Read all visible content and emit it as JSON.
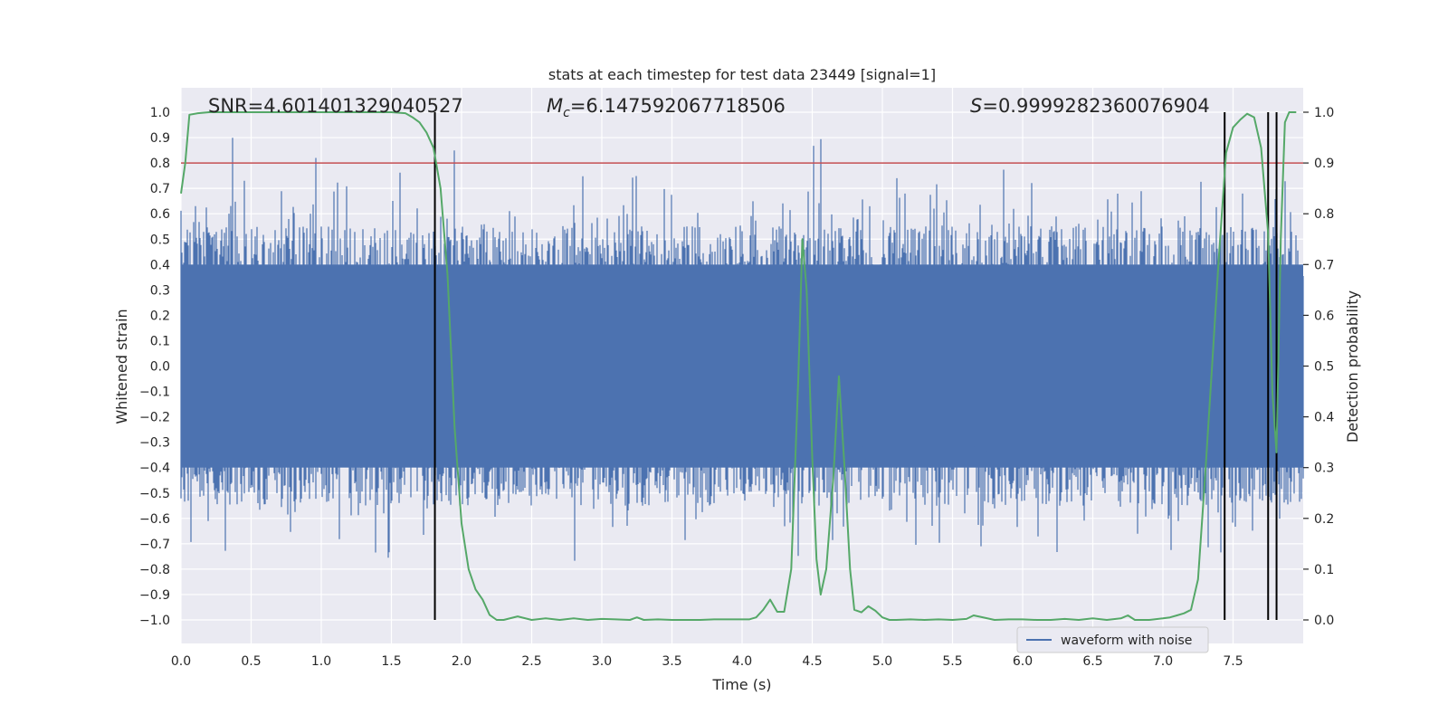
{
  "chart_data": {
    "type": "line",
    "title": "stats at each timestep for test data 23449 [signal=1]",
    "xlabel": "Time (s)",
    "ylabel": "Whitened strain",
    "y2label": "Detection probability",
    "xlim": [
      0.0,
      8.0
    ],
    "ylim": [
      -1.0,
      1.0
    ],
    "y2lim": [
      0.0,
      1.0
    ],
    "x_ticks": [
      0.0,
      0.5,
      1.0,
      1.5,
      2.0,
      2.5,
      3.0,
      3.5,
      4.0,
      4.5,
      5.0,
      5.5,
      6.0,
      6.5,
      7.0,
      7.5
    ],
    "x_tick_labels": [
      "0.0",
      "0.5",
      "1.0",
      "1.5",
      "2.0",
      "2.5",
      "3.0",
      "3.5",
      "4.0",
      "4.5",
      "5.0",
      "5.5",
      "6.0",
      "6.5",
      "7.0",
      "7.5"
    ],
    "y_ticks": [
      -1.0,
      -0.9,
      -0.8,
      -0.7,
      -0.6,
      -0.5,
      -0.4,
      -0.3,
      -0.2,
      -0.1,
      0.0,
      0.1,
      0.2,
      0.3,
      0.4,
      0.5,
      0.6,
      0.7,
      0.8,
      0.9,
      1.0
    ],
    "y_tick_labels": [
      "−1.0",
      "−0.9",
      "−0.8",
      "−0.7",
      "−0.6",
      "−0.5",
      "−0.4",
      "−0.3",
      "−0.2",
      "−0.1",
      "0.0",
      "0.1",
      "0.2",
      "0.3",
      "0.4",
      "0.5",
      "0.6",
      "0.7",
      "0.8",
      "0.9",
      "1.0"
    ],
    "y2_ticks": [
      0.0,
      0.1,
      0.2,
      0.3,
      0.4,
      0.5,
      0.6,
      0.7,
      0.8,
      0.9,
      1.0
    ],
    "y2_tick_labels": [
      "0.0",
      "0.1",
      "0.2",
      "0.3",
      "0.4",
      "0.5",
      "0.6",
      "0.7",
      "0.8",
      "0.9",
      "1.0"
    ],
    "annotations": {
      "snr": "SNR=4.601401329040527",
      "mc_symbol": "M",
      "mc_sub": "c",
      "mc_value": "=6.147592067718506",
      "s_symbol": "S",
      "s_value": "=0.9999282360076904"
    },
    "threshold": {
      "value": 0.8,
      "axis": "left",
      "color": "#c44e52"
    },
    "vertical_lines": [
      1.81,
      7.44,
      7.75,
      7.81
    ],
    "legend": {
      "label": "waveform with noise",
      "location": "bottom-right"
    },
    "colors": {
      "waveform": "#4c72b0",
      "probability": "#55a868",
      "threshold": "#c44e52",
      "vlines": "#000000",
      "plot_bg": "#eaeaf2",
      "grid": "#ffffff"
    },
    "waveform": {
      "name": "waveform with noise",
      "core_amplitude": 0.4,
      "noise_scale": 0.5,
      "t_start": 0.0,
      "t_end": 8.0
    },
    "probability_series": {
      "name": "detection probability",
      "x": [
        0.0,
        0.03,
        0.06,
        0.12,
        0.2,
        0.5,
        1.0,
        1.5,
        1.6,
        1.65,
        1.7,
        1.75,
        1.8,
        1.85,
        1.9,
        1.95,
        2.0,
        2.05,
        2.1,
        2.15,
        2.2,
        2.25,
        2.3,
        2.4,
        2.5,
        2.6,
        2.7,
        2.8,
        2.9,
        3.0,
        3.1,
        3.2,
        3.25,
        3.3,
        3.4,
        3.5,
        3.6,
        3.7,
        3.8,
        3.9,
        4.0,
        4.05,
        4.1,
        4.15,
        4.2,
        4.25,
        4.3,
        4.35,
        4.4,
        4.43,
        4.46,
        4.5,
        4.53,
        4.56,
        4.6,
        4.65,
        4.69,
        4.73,
        4.77,
        4.8,
        4.85,
        4.9,
        4.95,
        5.0,
        5.05,
        5.1,
        5.2,
        5.3,
        5.4,
        5.5,
        5.6,
        5.65,
        5.7,
        5.8,
        5.9,
        6.0,
        6.1,
        6.2,
        6.3,
        6.4,
        6.5,
        6.6,
        6.7,
        6.75,
        6.8,
        6.9,
        7.0,
        7.05,
        7.1,
        7.15,
        7.2,
        7.25,
        7.3,
        7.35,
        7.4,
        7.45,
        7.5,
        7.55,
        7.6,
        7.65,
        7.7,
        7.75,
        7.78,
        7.81,
        7.84,
        7.87,
        7.9,
        7.95
      ],
      "y": [
        0.84,
        0.9,
        0.995,
        0.998,
        1.0,
        1.0,
        1.0,
        1.0,
        0.998,
        0.99,
        0.98,
        0.96,
        0.93,
        0.85,
        0.68,
        0.38,
        0.19,
        0.1,
        0.06,
        0.04,
        0.01,
        0.0,
        0.0,
        0.007,
        0.0,
        0.003,
        0.0,
        0.003,
        0.0,
        0.002,
        0.001,
        0.0,
        0.005,
        0.0,
        0.001,
        0.0,
        0.0,
        0.0,
        0.001,
        0.001,
        0.001,
        0.001,
        0.005,
        0.02,
        0.04,
        0.016,
        0.016,
        0.1,
        0.47,
        0.75,
        0.65,
        0.32,
        0.12,
        0.05,
        0.1,
        0.28,
        0.48,
        0.3,
        0.1,
        0.02,
        0.015,
        0.027,
        0.018,
        0.005,
        0.0,
        0.0,
        0.001,
        0.0,
        0.001,
        0.0,
        0.002,
        0.009,
        0.006,
        0.0,
        0.001,
        0.001,
        0.0,
        0.0,
        0.002,
        0.0,
        0.003,
        0.0,
        0.003,
        0.009,
        0.0,
        0.0,
        0.003,
        0.005,
        0.009,
        0.013,
        0.02,
        0.08,
        0.28,
        0.5,
        0.72,
        0.92,
        0.97,
        0.985,
        0.997,
        0.99,
        0.93,
        0.76,
        0.45,
        0.33,
        0.75,
        0.98,
        1.0,
        1.0
      ]
    }
  }
}
